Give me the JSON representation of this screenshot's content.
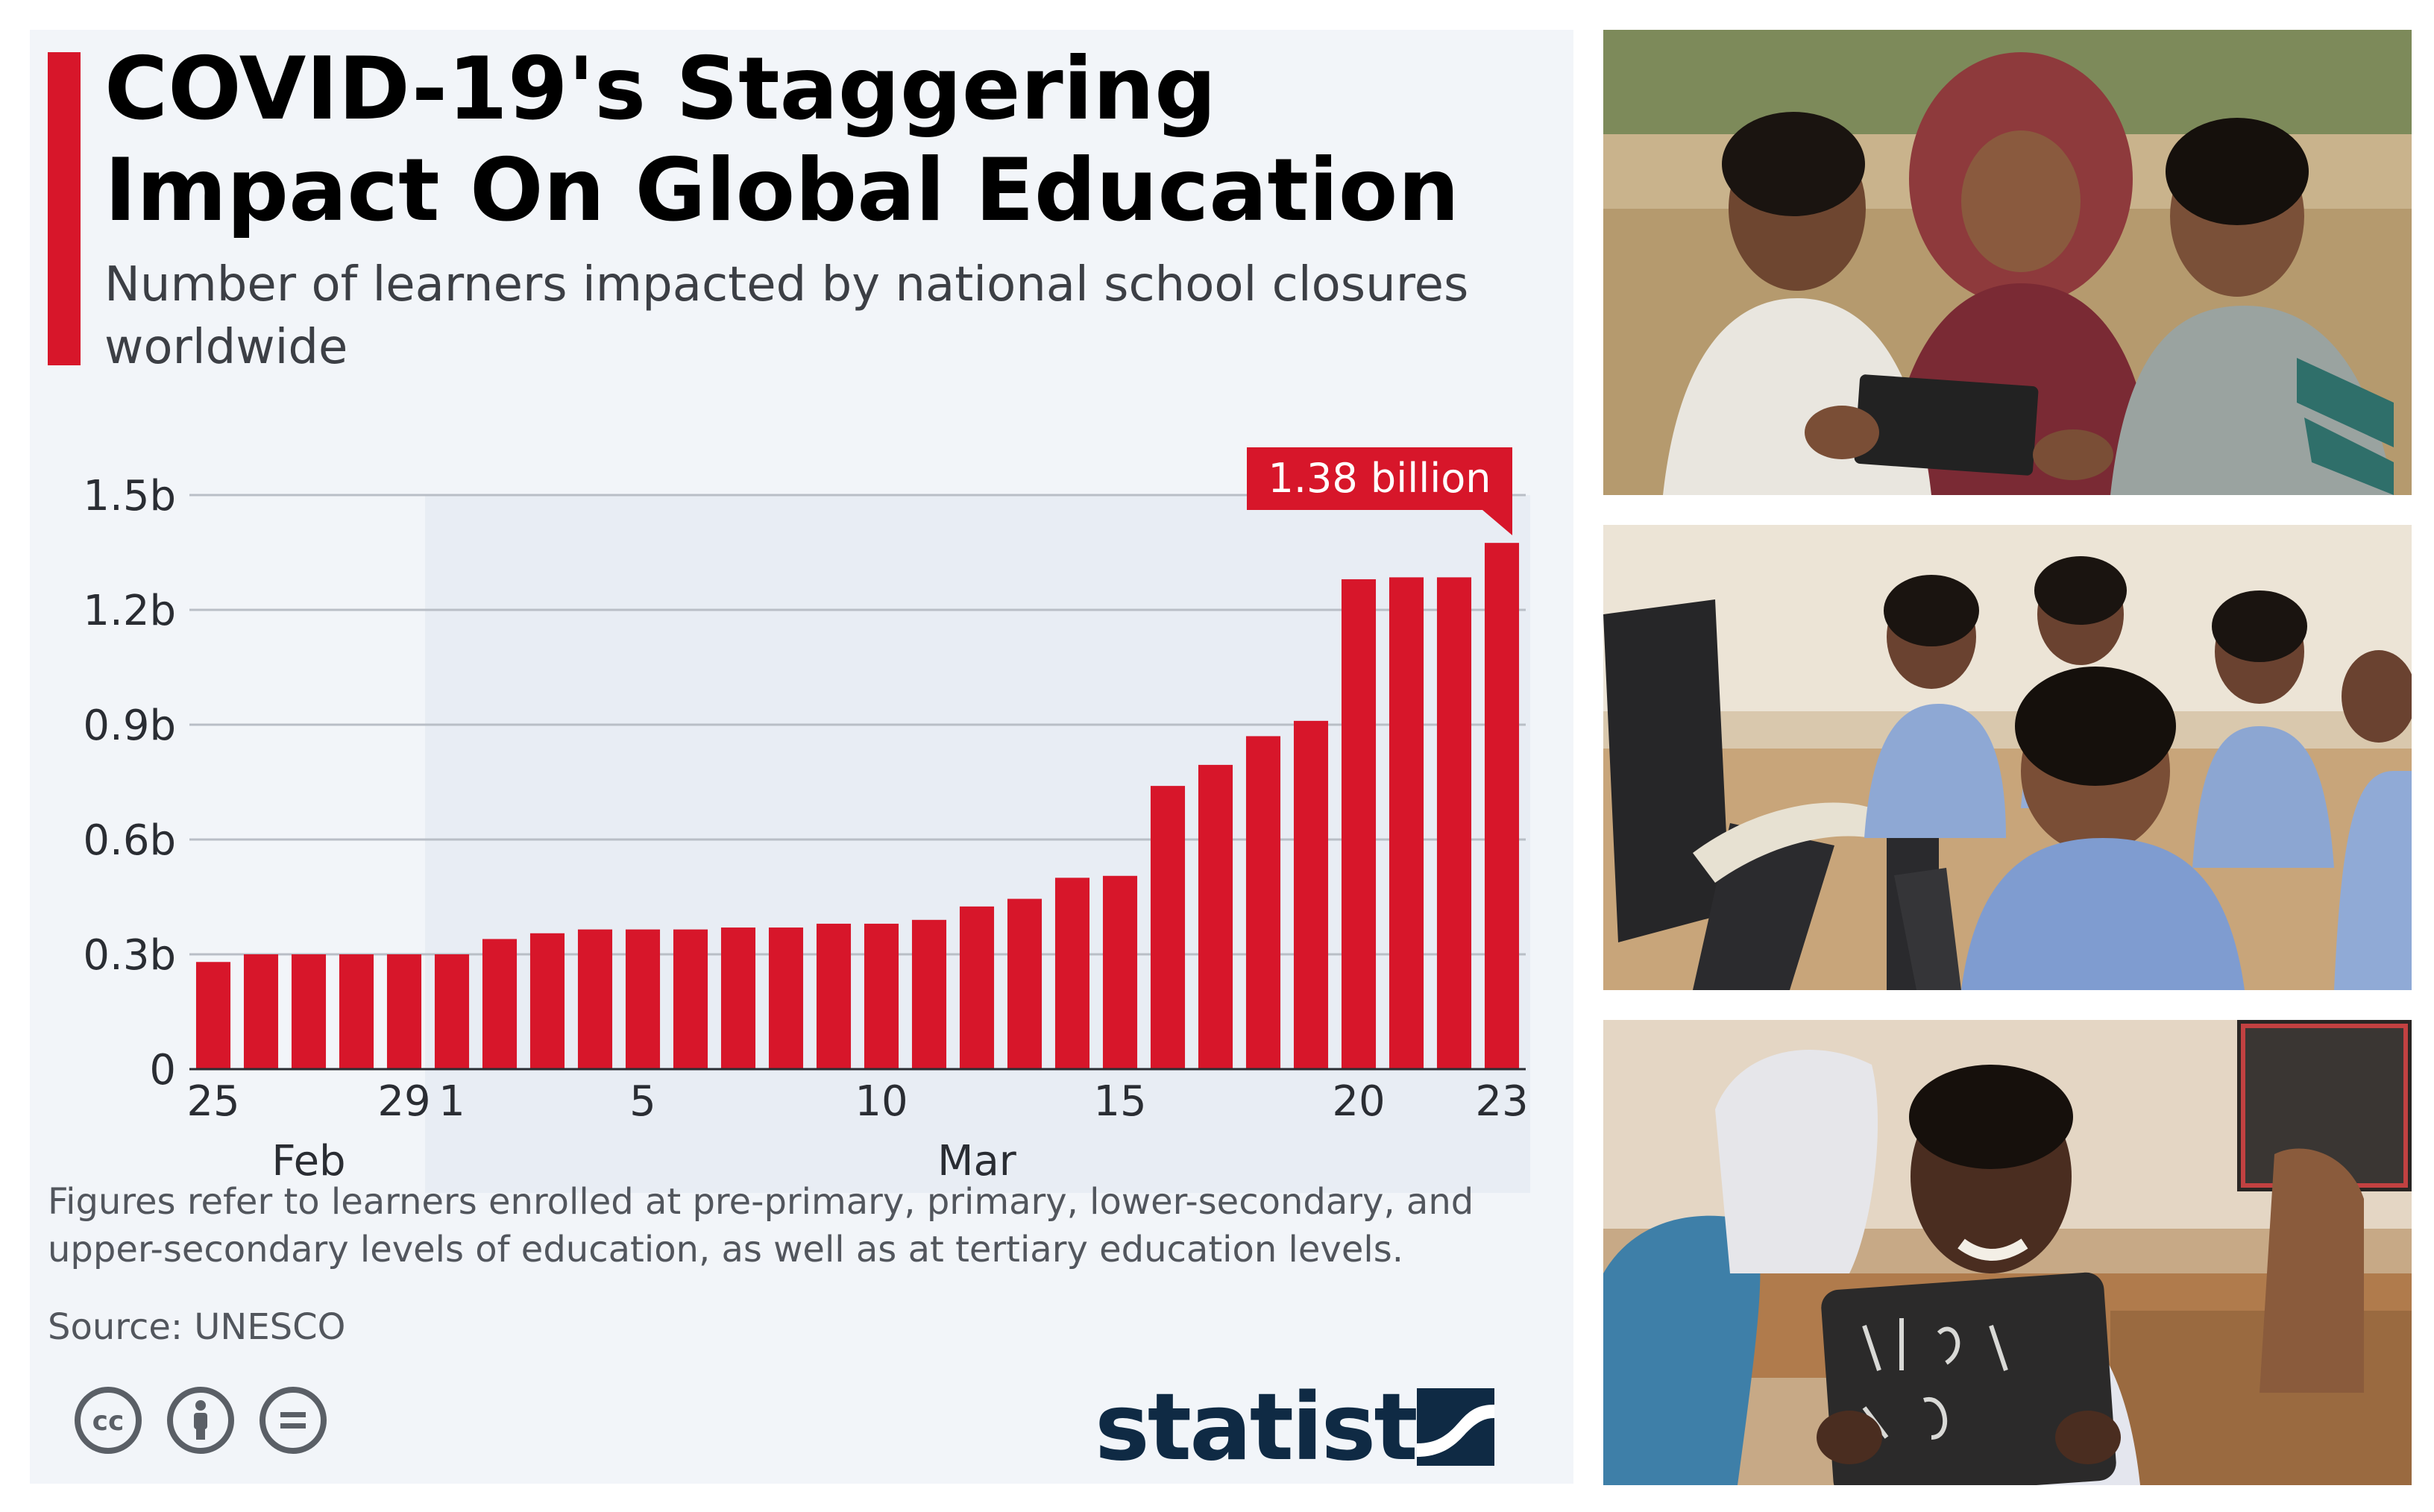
{
  "title": "COVID-19's Staggering Impact On Global Education",
  "subtitle": "Number of learners impacted by national school closures worldwide",
  "footnote": "Figures refer to learners enrolled at pre-primary, primary, lower-secondary, and upper-secondary levels of education, as well as at tertiary education levels.",
  "source": "Source: UNESCO",
  "brand": "statista",
  "colors": {
    "bar": "#d7162a",
    "accent": "#d7162a",
    "card": "#f2f5f9",
    "highlight_band": "#e8edf4"
  },
  "icons": [
    "cc-icon",
    "attribution-icon",
    "no-derivatives-icon",
    "statista-logo-icon"
  ],
  "photos": [
    {
      "name": "woman-and-children-with-tablet-photo"
    },
    {
      "name": "students-at-computer-photo"
    },
    {
      "name": "smiling-girl-with-slate-photo"
    }
  ],
  "chart_data": {
    "type": "bar",
    "ylim": [
      0,
      1.5
    ],
    "y_ticks": [
      {
        "value": 0,
        "label": "0"
      },
      {
        "value": 0.3,
        "label": "0.3b"
      },
      {
        "value": 0.6,
        "label": "0.6b"
      },
      {
        "value": 0.9,
        "label": "0.9b"
      },
      {
        "value": 1.2,
        "label": "1.2b"
      },
      {
        "value": 1.5,
        "label": "1.5b"
      }
    ],
    "grid": true,
    "categories": [
      "25 Feb",
      "26 Feb",
      "27 Feb",
      "28 Feb",
      "29 Feb",
      "1 Mar",
      "2 Mar",
      "3 Mar",
      "4 Mar",
      "5 Mar",
      "6 Mar",
      "7 Mar",
      "8 Mar",
      "9 Mar",
      "10 Mar",
      "11 Mar",
      "12 Mar",
      "13 Mar",
      "14 Mar",
      "15 Mar",
      "16 Mar",
      "17 Mar",
      "18 Mar",
      "19 Mar",
      "20 Mar",
      "21 Mar",
      "22 Mar",
      "23 Mar"
    ],
    "values": [
      0.28,
      0.3,
      0.3,
      0.3,
      0.3,
      0.3,
      0.34,
      0.355,
      0.365,
      0.365,
      0.365,
      0.37,
      0.37,
      0.38,
      0.38,
      0.39,
      0.425,
      0.445,
      0.5,
      0.505,
      0.74,
      0.795,
      0.87,
      0.91,
      1.28,
      1.285,
      1.285,
      1.375
    ],
    "x_tick_labels": [
      {
        "index": 0,
        "label": "25"
      },
      {
        "index": 4,
        "label": "29"
      },
      {
        "index": 5,
        "label": "1"
      },
      {
        "index": 9,
        "label": "5"
      },
      {
        "index": 14,
        "label": "10"
      },
      {
        "index": 19,
        "label": "15"
      },
      {
        "index": 24,
        "label": "20"
      },
      {
        "index": 27,
        "label": "23"
      }
    ],
    "month_labels": [
      {
        "label": "Feb",
        "center_index": 2
      },
      {
        "label": "Mar",
        "center_index": 16
      }
    ],
    "highlight_range": [
      5,
      27
    ],
    "callout": {
      "index": 27,
      "label": "1.38 billion"
    }
  }
}
